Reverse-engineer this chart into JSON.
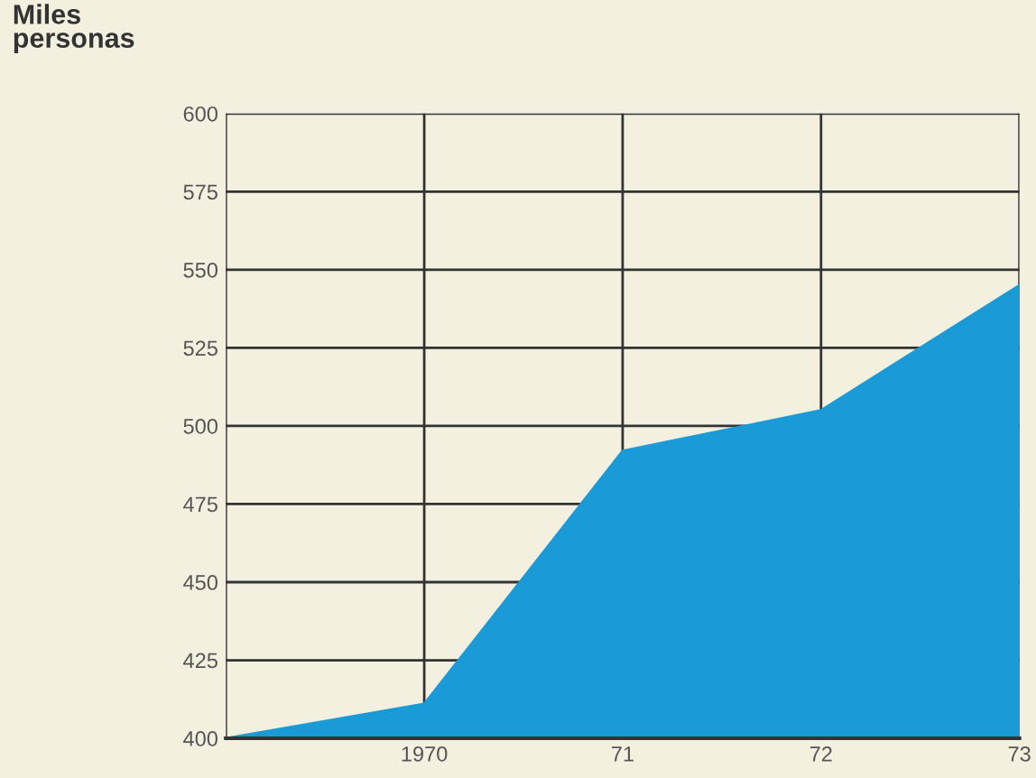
{
  "chart_data": {
    "type": "area",
    "ylabel": "Miles\npersonas",
    "categories": [
      null,
      "1970",
      "71",
      "72",
      "73"
    ],
    "series": [
      {
        "color": "#1a9ad6",
        "values": [
          400,
          411,
          492,
          505,
          545
        ]
      }
    ],
    "ylim": [
      400,
      600
    ],
    "yticks": [
      400,
      425,
      450,
      475,
      500,
      525,
      550,
      575,
      600
    ],
    "grid": true
  }
}
